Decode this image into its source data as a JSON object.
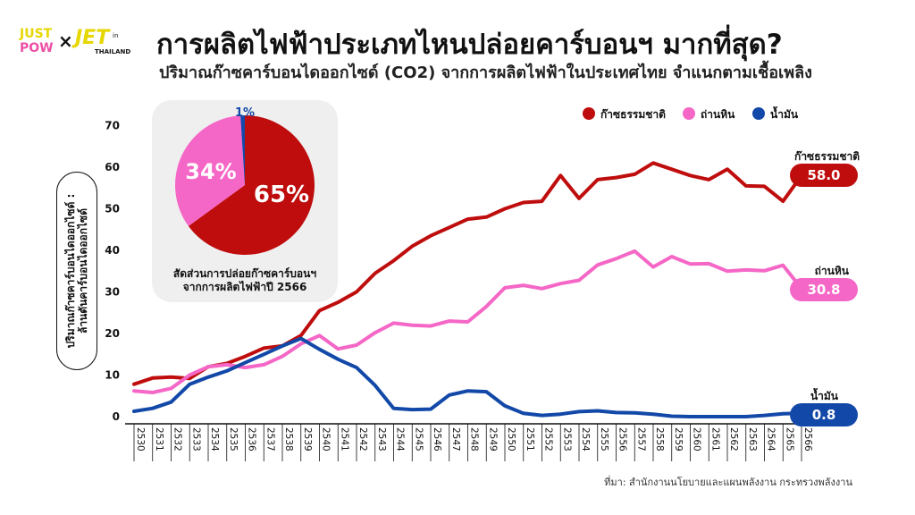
{
  "logo": {
    "just": "JUST",
    "pow": "POW",
    "x": "×",
    "jet": "JET",
    "in": "in",
    "thailand": "THAILAND"
  },
  "title": "การผลิตไฟฟ้าประเภทไหนปล่อยคาร์บอนฯ มากที่สุด?",
  "subtitle": "ปริมาณก๊าซคาร์บอนไดออกไซด์ (CO2) จากการผลิตไฟฟ้าในประเทศไทย จำแนกตามเชื้อเพลิง",
  "y_axis_label_line1": "ปริมาณก๊าซคาร์บอนไดออกไซด์ :",
  "y_axis_label_line2": "ล้านตันคาร์บอนไดออกไซด์",
  "source": "ที่มา: สำนักงานนโยบายและแผนพลังงาน กระทรวงพลังงาน",
  "pie": {
    "caption_line1": "สัดส่วนการปล่อยก๊าซคาร์บอนฯ",
    "caption_line2": "จากการผลิตไฟฟ้าปี 2566",
    "slices": [
      {
        "name": "ก๊าซธรรมชาติ",
        "value": 65,
        "label": "65%",
        "color": "#bf0d0d"
      },
      {
        "name": "ถ่านหิน",
        "value": 34,
        "label": "34%",
        "color": "#f567c6"
      },
      {
        "name": "น้ำมัน",
        "value": 1,
        "label": "1%",
        "color": "#1248a8"
      }
    ]
  },
  "chart_data": {
    "type": "line",
    "title": "การผลิตไฟฟ้าประเภทไหนปล่อยคาร์บอนฯ มากที่สุด?",
    "ylabel": "ปริมาณก๊าซคาร์บอนไดออกไซด์ : ล้านตันคาร์บอนไดออกไซด์",
    "xlabel": "",
    "ylim": [
      0,
      70
    ],
    "yticks": [
      0,
      10,
      20,
      30,
      40,
      50,
      60,
      70
    ],
    "x": [
      "2530",
      "2531",
      "2532",
      "2533",
      "2534",
      "2535",
      "2536",
      "2537",
      "2538",
      "2539",
      "2540",
      "2541",
      "2542",
      "2543",
      "2544",
      "2545",
      "2546",
      "2547",
      "2548",
      "2549",
      "2550",
      "2551",
      "2552",
      "2553",
      "2554",
      "2555",
      "2556",
      "2557",
      "2558",
      "2559",
      "2560",
      "2561",
      "2562",
      "2563",
      "2564",
      "2565",
      "2566"
    ],
    "legend_position": "top-right",
    "series": [
      {
        "name": "ก๊าซธรรมชาติ",
        "color": "#bf0d0d",
        "end_label": "58.0",
        "values": [
          7.8,
          9.3,
          9.5,
          9.2,
          12.0,
          12.8,
          14.5,
          16.5,
          17.0,
          19.5,
          25.5,
          27.5,
          30.0,
          34.5,
          37.5,
          41.0,
          43.5,
          45.5,
          47.5,
          48.0,
          50.0,
          51.5,
          51.8,
          58.0,
          52.5,
          57.0,
          57.5,
          58.3,
          61.0,
          59.5,
          58.0,
          57.0,
          59.5,
          55.5,
          55.4,
          51.8,
          58.0
        ]
      },
      {
        "name": "ถ่านหิน",
        "color": "#f567c6",
        "end_label": "30.8",
        "values": [
          6.2,
          5.8,
          6.8,
          10.0,
          12.0,
          12.5,
          11.8,
          12.5,
          14.5,
          17.5,
          19.5,
          16.3,
          17.2,
          20.2,
          22.5,
          22.0,
          21.8,
          23.0,
          22.8,
          26.5,
          31.0,
          31.6,
          30.8,
          32.0,
          32.8,
          36.5,
          38.0,
          39.8,
          36.0,
          38.5,
          36.7,
          36.8,
          35.0,
          35.3,
          35.1,
          36.4,
          30.8
        ]
      },
      {
        "name": "น้ำมัน",
        "color": "#1248a8",
        "end_label": "0.8",
        "values": [
          1.3,
          2.0,
          3.5,
          7.8,
          9.5,
          11.0,
          13.0,
          15.0,
          17.0,
          18.8,
          16.2,
          13.8,
          11.8,
          7.5,
          2.0,
          1.7,
          1.8,
          5.2,
          6.2,
          6.0,
          2.6,
          0.8,
          0.3,
          0.6,
          1.2,
          1.4,
          1.0,
          0.9,
          0.6,
          0.1,
          0.0,
          0.0,
          0.0,
          0.0,
          0.3,
          0.7,
          0.8
        ]
      }
    ]
  }
}
